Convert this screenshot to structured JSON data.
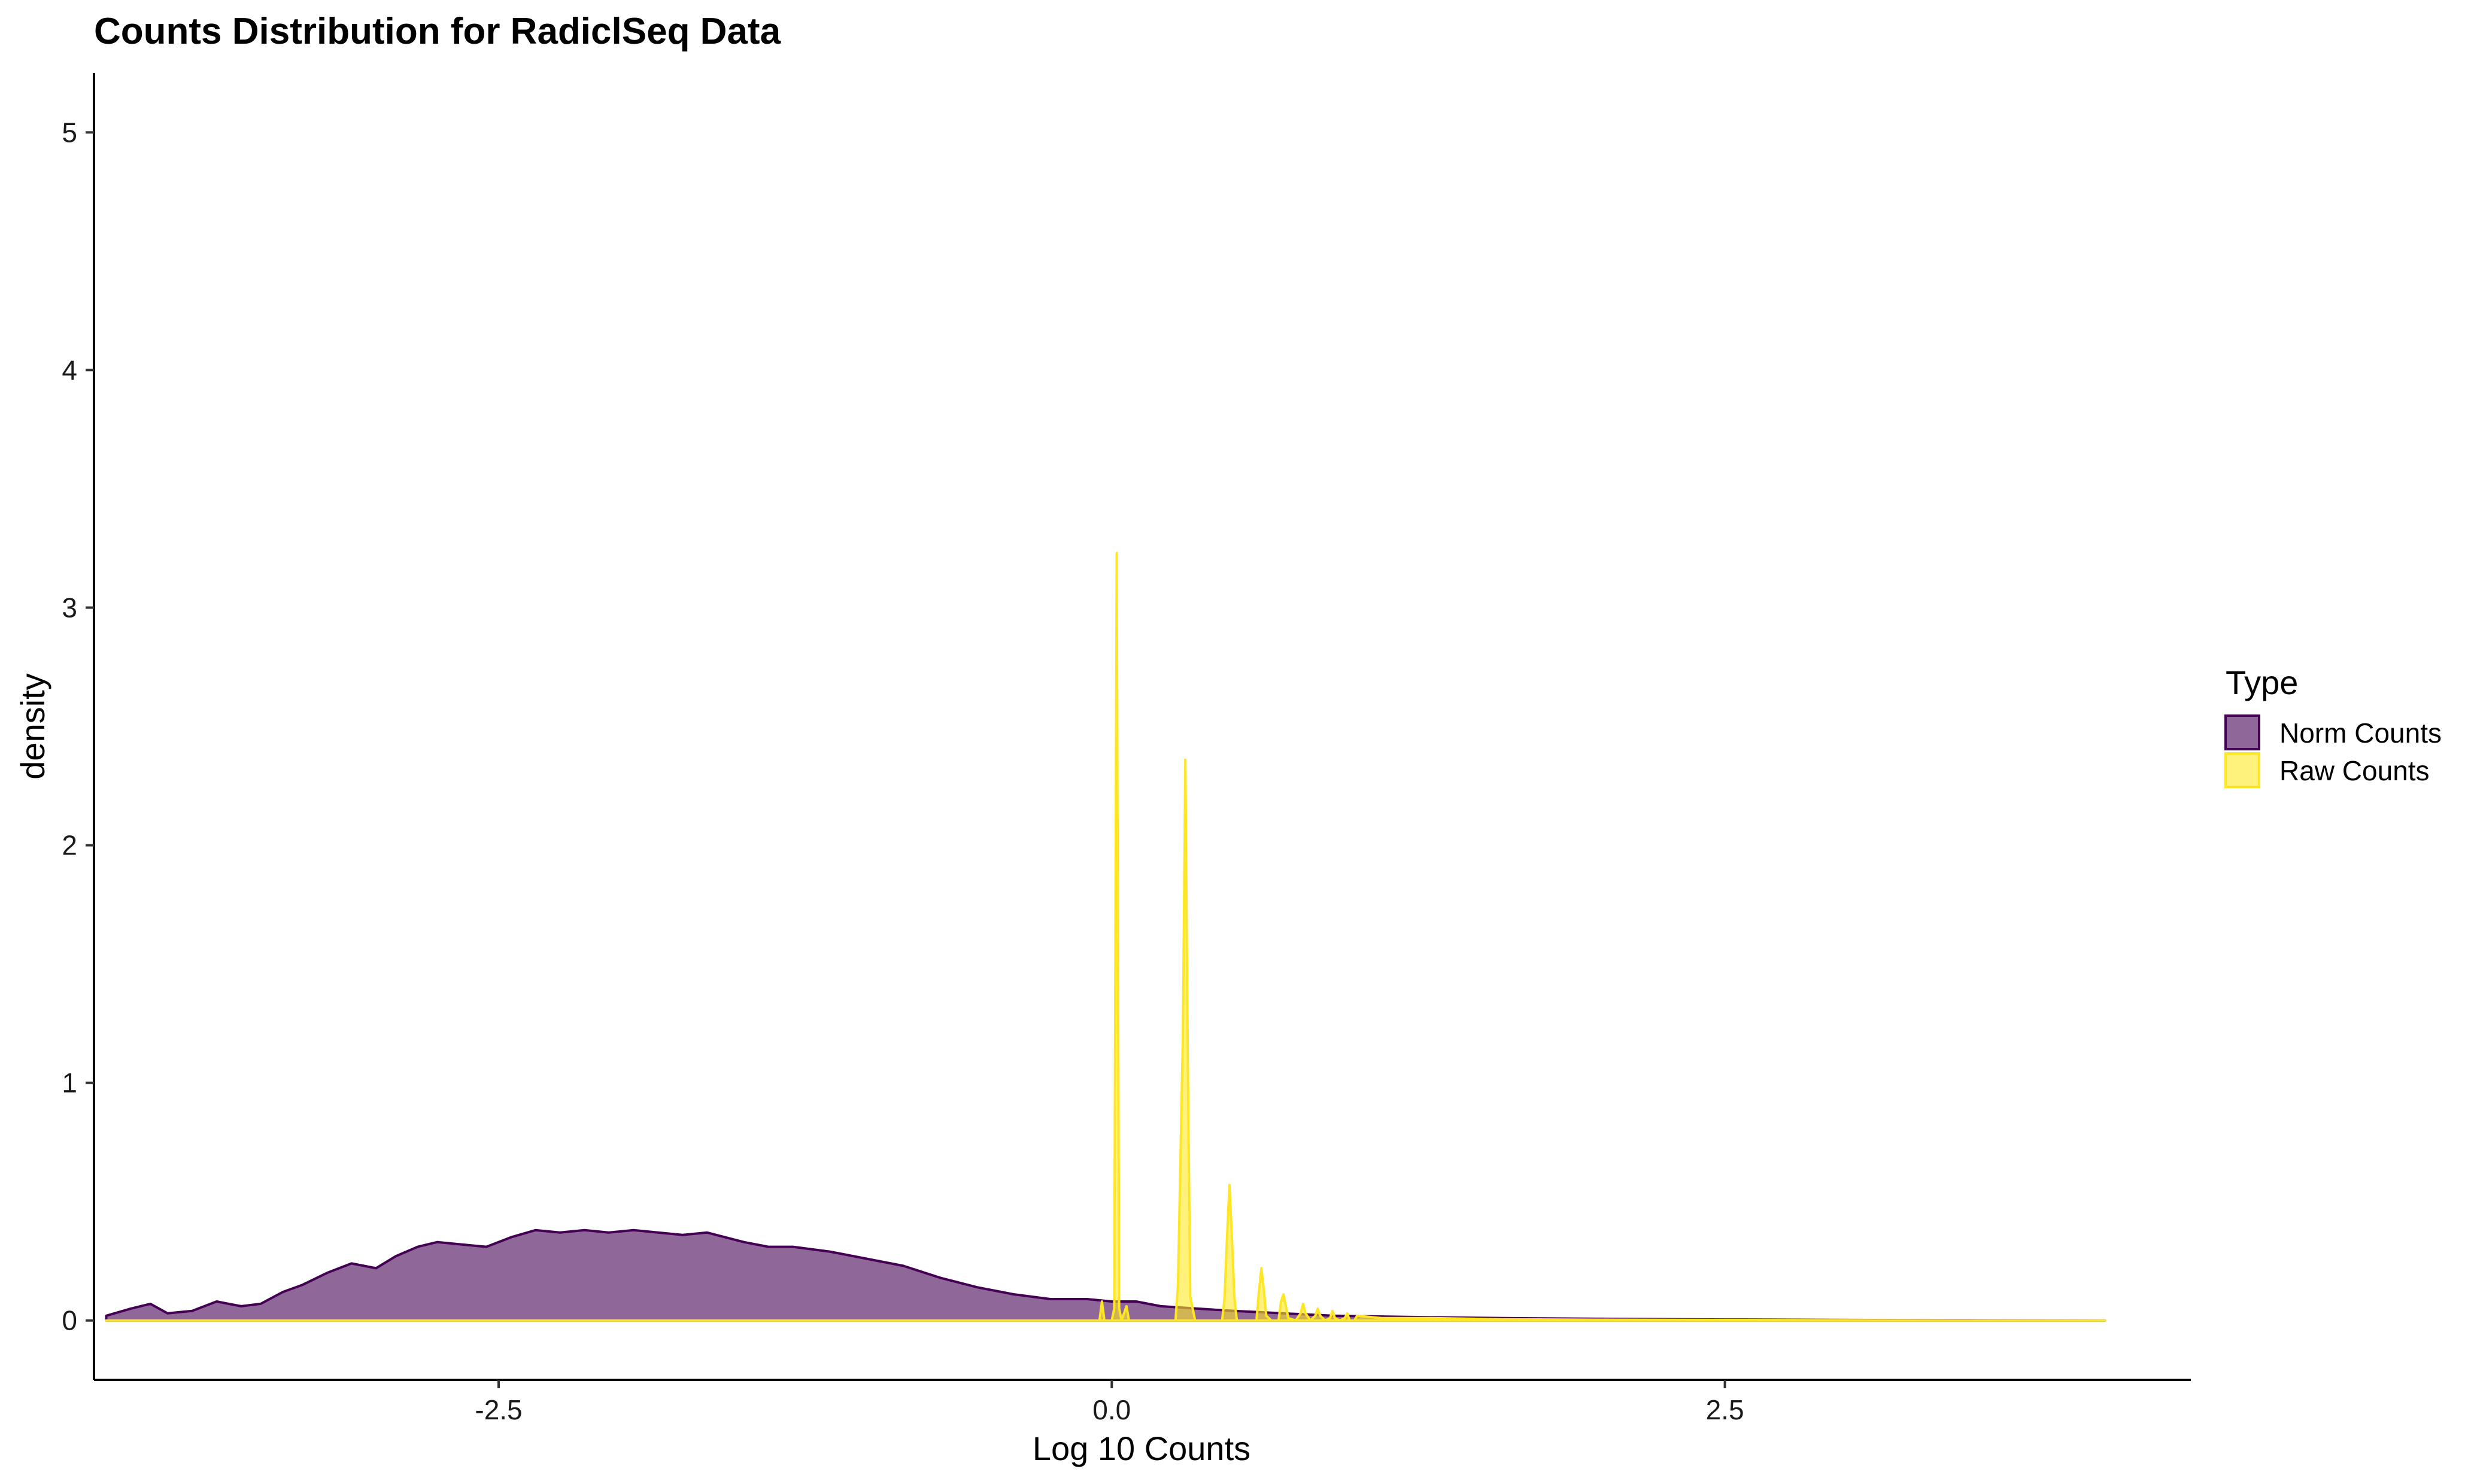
{
  "chart_data": {
    "type": "area",
    "title": "Counts Distribution for RadiclSeq Data",
    "xlabel": "Log 10 Counts",
    "ylabel": "density",
    "xlim": [
      -4.15,
      4.4
    ],
    "ylim": [
      -0.25,
      5.25
    ],
    "xticks": [
      -2.5,
      0.0,
      2.5
    ],
    "xtick_labels": [
      "-2.5",
      "0.0",
      "2.5"
    ],
    "yticks": [
      0,
      1,
      2,
      3,
      4,
      5
    ],
    "ytick_labels": [
      "0",
      "1",
      "2",
      "3",
      "4",
      "5"
    ],
    "grid": false,
    "legend": {
      "title": "Type",
      "position": "right"
    },
    "series": [
      {
        "name": "Norm Counts",
        "fill": "#440154",
        "fill_opacity": 0.6,
        "stroke": "#440154",
        "x": [
          -4.1,
          -4.0,
          -3.92,
          -3.85,
          -3.75,
          -3.65,
          -3.55,
          -3.47,
          -3.38,
          -3.3,
          -3.2,
          -3.1,
          -3.0,
          -2.92,
          -2.83,
          -2.75,
          -2.65,
          -2.55,
          -2.45,
          -2.35,
          -2.25,
          -2.15,
          -2.05,
          -1.95,
          -1.85,
          -1.75,
          -1.65,
          -1.5,
          -1.4,
          -1.3,
          -1.15,
          -1.0,
          -0.85,
          -0.7,
          -0.55,
          -0.4,
          -0.25,
          -0.1,
          0.0,
          0.1,
          0.2,
          0.35,
          0.5,
          0.7,
          0.9,
          1.2,
          1.6,
          2.0,
          2.5,
          3.0,
          3.5,
          4.05
        ],
        "y": [
          0.02,
          0.05,
          0.07,
          0.03,
          0.04,
          0.08,
          0.06,
          0.07,
          0.12,
          0.15,
          0.2,
          0.24,
          0.22,
          0.27,
          0.31,
          0.33,
          0.32,
          0.31,
          0.35,
          0.38,
          0.37,
          0.38,
          0.37,
          0.38,
          0.37,
          0.36,
          0.37,
          0.33,
          0.31,
          0.31,
          0.29,
          0.26,
          0.23,
          0.18,
          0.14,
          0.11,
          0.09,
          0.09,
          0.08,
          0.08,
          0.06,
          0.05,
          0.04,
          0.03,
          0.02,
          0.015,
          0.01,
          0.007,
          0.004,
          0.002,
          0.001,
          0.0
        ]
      },
      {
        "name": "Raw Counts",
        "fill": "#FDE725",
        "fill_opacity": 0.6,
        "stroke": "#FDE725",
        "x": [
          -4.1,
          -0.05,
          -0.04,
          -0.03,
          -0.02,
          0.0,
          0.01,
          0.02,
          0.03,
          0.04,
          0.06,
          0.07,
          0.26,
          0.27,
          0.29,
          0.3,
          0.31,
          0.32,
          0.34,
          0.35,
          0.45,
          0.46,
          0.47,
          0.48,
          0.49,
          0.5,
          0.51,
          0.53,
          0.59,
          0.6,
          0.61,
          0.62,
          0.63,
          0.65,
          0.68,
          0.69,
          0.7,
          0.71,
          0.72,
          0.75,
          0.77,
          0.78,
          0.79,
          0.81,
          0.83,
          0.84,
          0.85,
          0.87,
          0.89,
          0.9,
          0.91,
          0.93,
          0.95,
          0.96,
          0.97,
          0.99,
          1.0,
          1.1,
          1.3,
          1.6,
          2.0,
          2.5,
          3.0,
          3.5,
          4.05
        ],
        "y": [
          0.0,
          0.0,
          0.08,
          0.0,
          0.0,
          0.0,
          0.05,
          3.23,
          0.05,
          0.0,
          0.06,
          0.0,
          0.0,
          0.15,
          1.2,
          2.36,
          1.1,
          0.1,
          0.0,
          0.0,
          0.0,
          0.1,
          0.35,
          0.57,
          0.35,
          0.1,
          0.0,
          0.0,
          0.0,
          0.12,
          0.22,
          0.13,
          0.02,
          0.0,
          0.0,
          0.08,
          0.11,
          0.06,
          0.01,
          0.0,
          0.03,
          0.07,
          0.03,
          0.0,
          0.02,
          0.05,
          0.02,
          0.0,
          0.01,
          0.04,
          0.01,
          0.0,
          0.01,
          0.03,
          0.0,
          0.0,
          0.02,
          0.01,
          0.01,
          0.005,
          0.003,
          0.002,
          0.001,
          0.0,
          0.0
        ]
      }
    ]
  }
}
